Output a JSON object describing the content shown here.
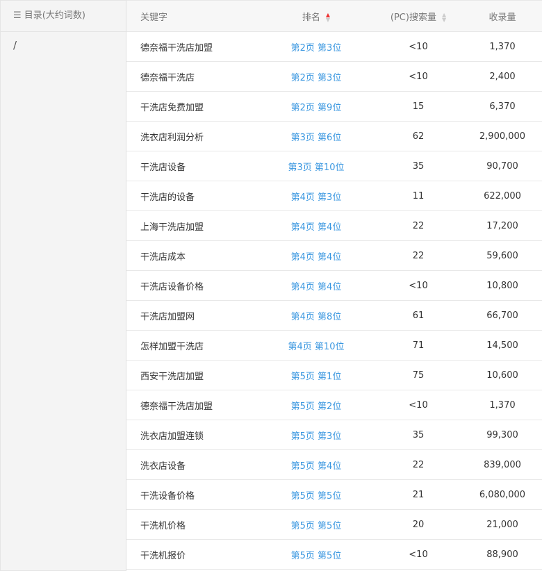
{
  "sidebar": {
    "title": "目录(大约词数)",
    "items": [
      {
        "label": "/"
      }
    ]
  },
  "table": {
    "headers": {
      "keyword": "关键字",
      "rank": "排名",
      "search": "(PC)搜索量",
      "indexed": "收录量"
    },
    "sort": {
      "rank": "asc",
      "search": "none"
    },
    "rows": [
      {
        "keyword": "德奈福干洗店加盟",
        "rank": "第2页 第3位",
        "search": "<10",
        "indexed": "1,370"
      },
      {
        "keyword": "德奈福干洗店",
        "rank": "第2页 第3位",
        "search": "<10",
        "indexed": "2,400"
      },
      {
        "keyword": "干洗店免费加盟",
        "rank": "第2页 第9位",
        "search": "15",
        "indexed": "6,370"
      },
      {
        "keyword": "洗衣店利润分析",
        "rank": "第3页 第6位",
        "search": "62",
        "indexed": "2,900,000"
      },
      {
        "keyword": "干洗店设备",
        "rank": "第3页 第10位",
        "search": "35",
        "indexed": "90,700"
      },
      {
        "keyword": "干洗店的设备",
        "rank": "第4页 第3位",
        "search": "11",
        "indexed": "622,000"
      },
      {
        "keyword": "上海干洗店加盟",
        "rank": "第4页 第4位",
        "search": "22",
        "indexed": "17,200"
      },
      {
        "keyword": "干洗店成本",
        "rank": "第4页 第4位",
        "search": "22",
        "indexed": "59,600"
      },
      {
        "keyword": "干洗店设备价格",
        "rank": "第4页 第4位",
        "search": "<10",
        "indexed": "10,800"
      },
      {
        "keyword": "干洗店加盟网",
        "rank": "第4页 第8位",
        "search": "61",
        "indexed": "66,700"
      },
      {
        "keyword": "怎样加盟干洗店",
        "rank": "第4页 第10位",
        "search": "71",
        "indexed": "14,500"
      },
      {
        "keyword": "西安干洗店加盟",
        "rank": "第5页 第1位",
        "search": "75",
        "indexed": "10,600"
      },
      {
        "keyword": "德奈福干洗店加盟",
        "rank": "第5页 第2位",
        "search": "<10",
        "indexed": "1,370"
      },
      {
        "keyword": "洗衣店加盟连锁",
        "rank": "第5页 第3位",
        "search": "35",
        "indexed": "99,300"
      },
      {
        "keyword": "洗衣店设备",
        "rank": "第5页 第4位",
        "search": "22",
        "indexed": "839,000"
      },
      {
        "keyword": "干洗设备价格",
        "rank": "第5页 第5位",
        "search": "21",
        "indexed": "6,080,000"
      },
      {
        "keyword": "干洗机价格",
        "rank": "第5页 第5位",
        "search": "20",
        "indexed": "21,000"
      },
      {
        "keyword": "干洗机报价",
        "rank": "第5页 第5位",
        "search": "<10",
        "indexed": "88,900"
      }
    ]
  }
}
